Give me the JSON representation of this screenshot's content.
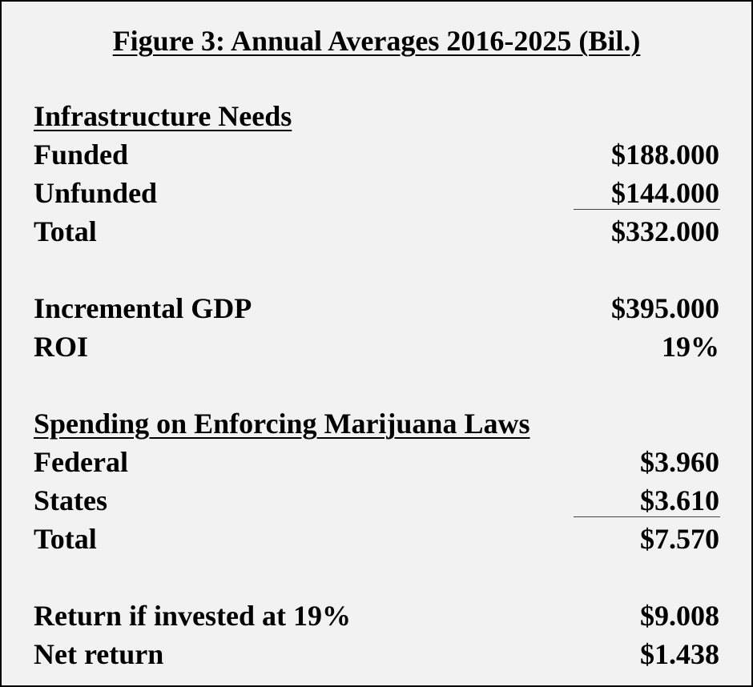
{
  "title": "Figure 3: Annual Averages 2016-2025 (Bil.)",
  "infrastructure": {
    "heading": "Infrastructure Needs",
    "rows": [
      {
        "label": "Funded",
        "value": "$188.000"
      },
      {
        "label": "Unfunded",
        "value": "$144.000"
      },
      {
        "label": "Total",
        "value": "$332.000"
      }
    ]
  },
  "gdp": {
    "rows": [
      {
        "label": "Incremental GDP",
        "value": "$395.000"
      },
      {
        "label": "ROI",
        "value": "19%"
      }
    ]
  },
  "marijuana": {
    "heading": "Spending on Enforcing Marijuana Laws",
    "rows": [
      {
        "label": "Federal",
        "value": "$3.960"
      },
      {
        "label": "States",
        "value": "$3.610"
      },
      {
        "label": "Total",
        "value": "$7.570"
      }
    ]
  },
  "returns": {
    "rows": [
      {
        "label": "Return if invested at 19%",
        "value": "$9.008"
      },
      {
        "label": "Net return",
        "value": "$1.438"
      }
    ]
  }
}
